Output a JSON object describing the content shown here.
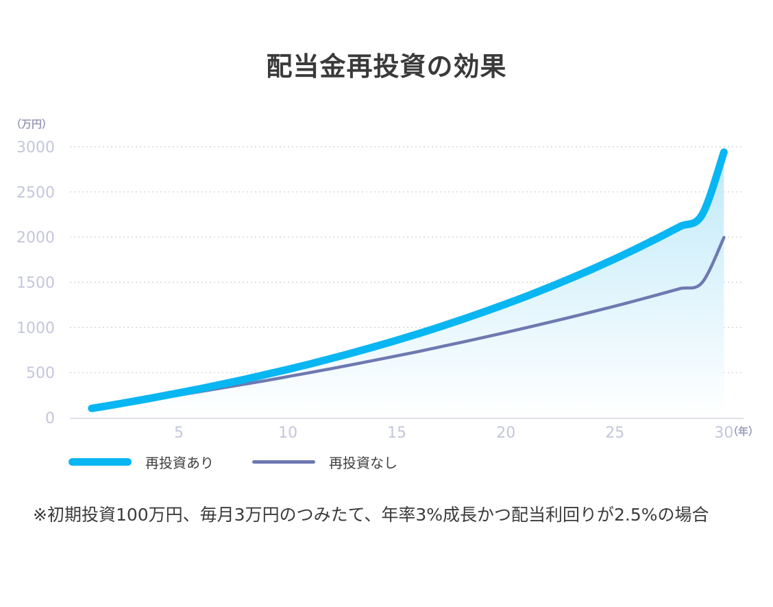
{
  "title": "配当金再投資の効果",
  "note": "※初期投資100万円、毎月3万円のつみたて、年率3%成長かつ配当利回りが2.5%の場合",
  "colors": {
    "with_reinvest": "#08b6f2",
    "without_reinvest": "#6e79b0",
    "grid": "#c9ccd8",
    "area_top": "#bfe9f9"
  },
  "chart_data": {
    "type": "line",
    "title": "配当金再投資の効果",
    "ylabel": "（万円）",
    "xlabel": "（年）",
    "ylim": [
      0,
      3000
    ],
    "xlim": [
      0,
      31
    ],
    "yticks": [
      0,
      500,
      1000,
      1500,
      2000,
      2500,
      3000
    ],
    "xticks": [
      5,
      10,
      15,
      20,
      25,
      30
    ],
    "grid": "horizontal dotted",
    "legend": "bottom-left",
    "series": [
      {
        "name": "再投資あり",
        "x": [
          1,
          2,
          3,
          4,
          5,
          6,
          7,
          8,
          9,
          10,
          11,
          12,
          13,
          14,
          15,
          16,
          17,
          18,
          19,
          20,
          21,
          22,
          23,
          24,
          25,
          26,
          27,
          28,
          29,
          30
        ],
        "values": [
          103,
          143,
          185,
          229,
          275,
          322,
          372,
          424,
          479,
          535,
          594,
          656,
          721,
          788,
          858,
          931,
          1008,
          1088,
          1172,
          1259,
          1350,
          1446,
          1546,
          1650,
          1759,
          1874,
          1993,
          2118,
          2248,
          2940
        ]
      },
      {
        "name": "再投資なし",
        "x": [
          1,
          2,
          3,
          4,
          5,
          6,
          7,
          8,
          9,
          10,
          11,
          12,
          13,
          14,
          15,
          16,
          17,
          18,
          19,
          20,
          21,
          22,
          23,
          24,
          25,
          26,
          27,
          28,
          29,
          30
        ],
        "values": [
          103,
          140,
          176,
          213,
          251,
          290,
          330,
          371,
          412,
          455,
          499,
          544,
          590,
          637,
          685,
          734,
          785,
          837,
          890,
          944,
          1000,
          1057,
          1115,
          1175,
          1236,
          1299,
          1364,
          1430,
          1497,
          1995
        ]
      }
    ]
  },
  "legend": {
    "item1": "再投資あり",
    "item2": "再投資なし"
  }
}
